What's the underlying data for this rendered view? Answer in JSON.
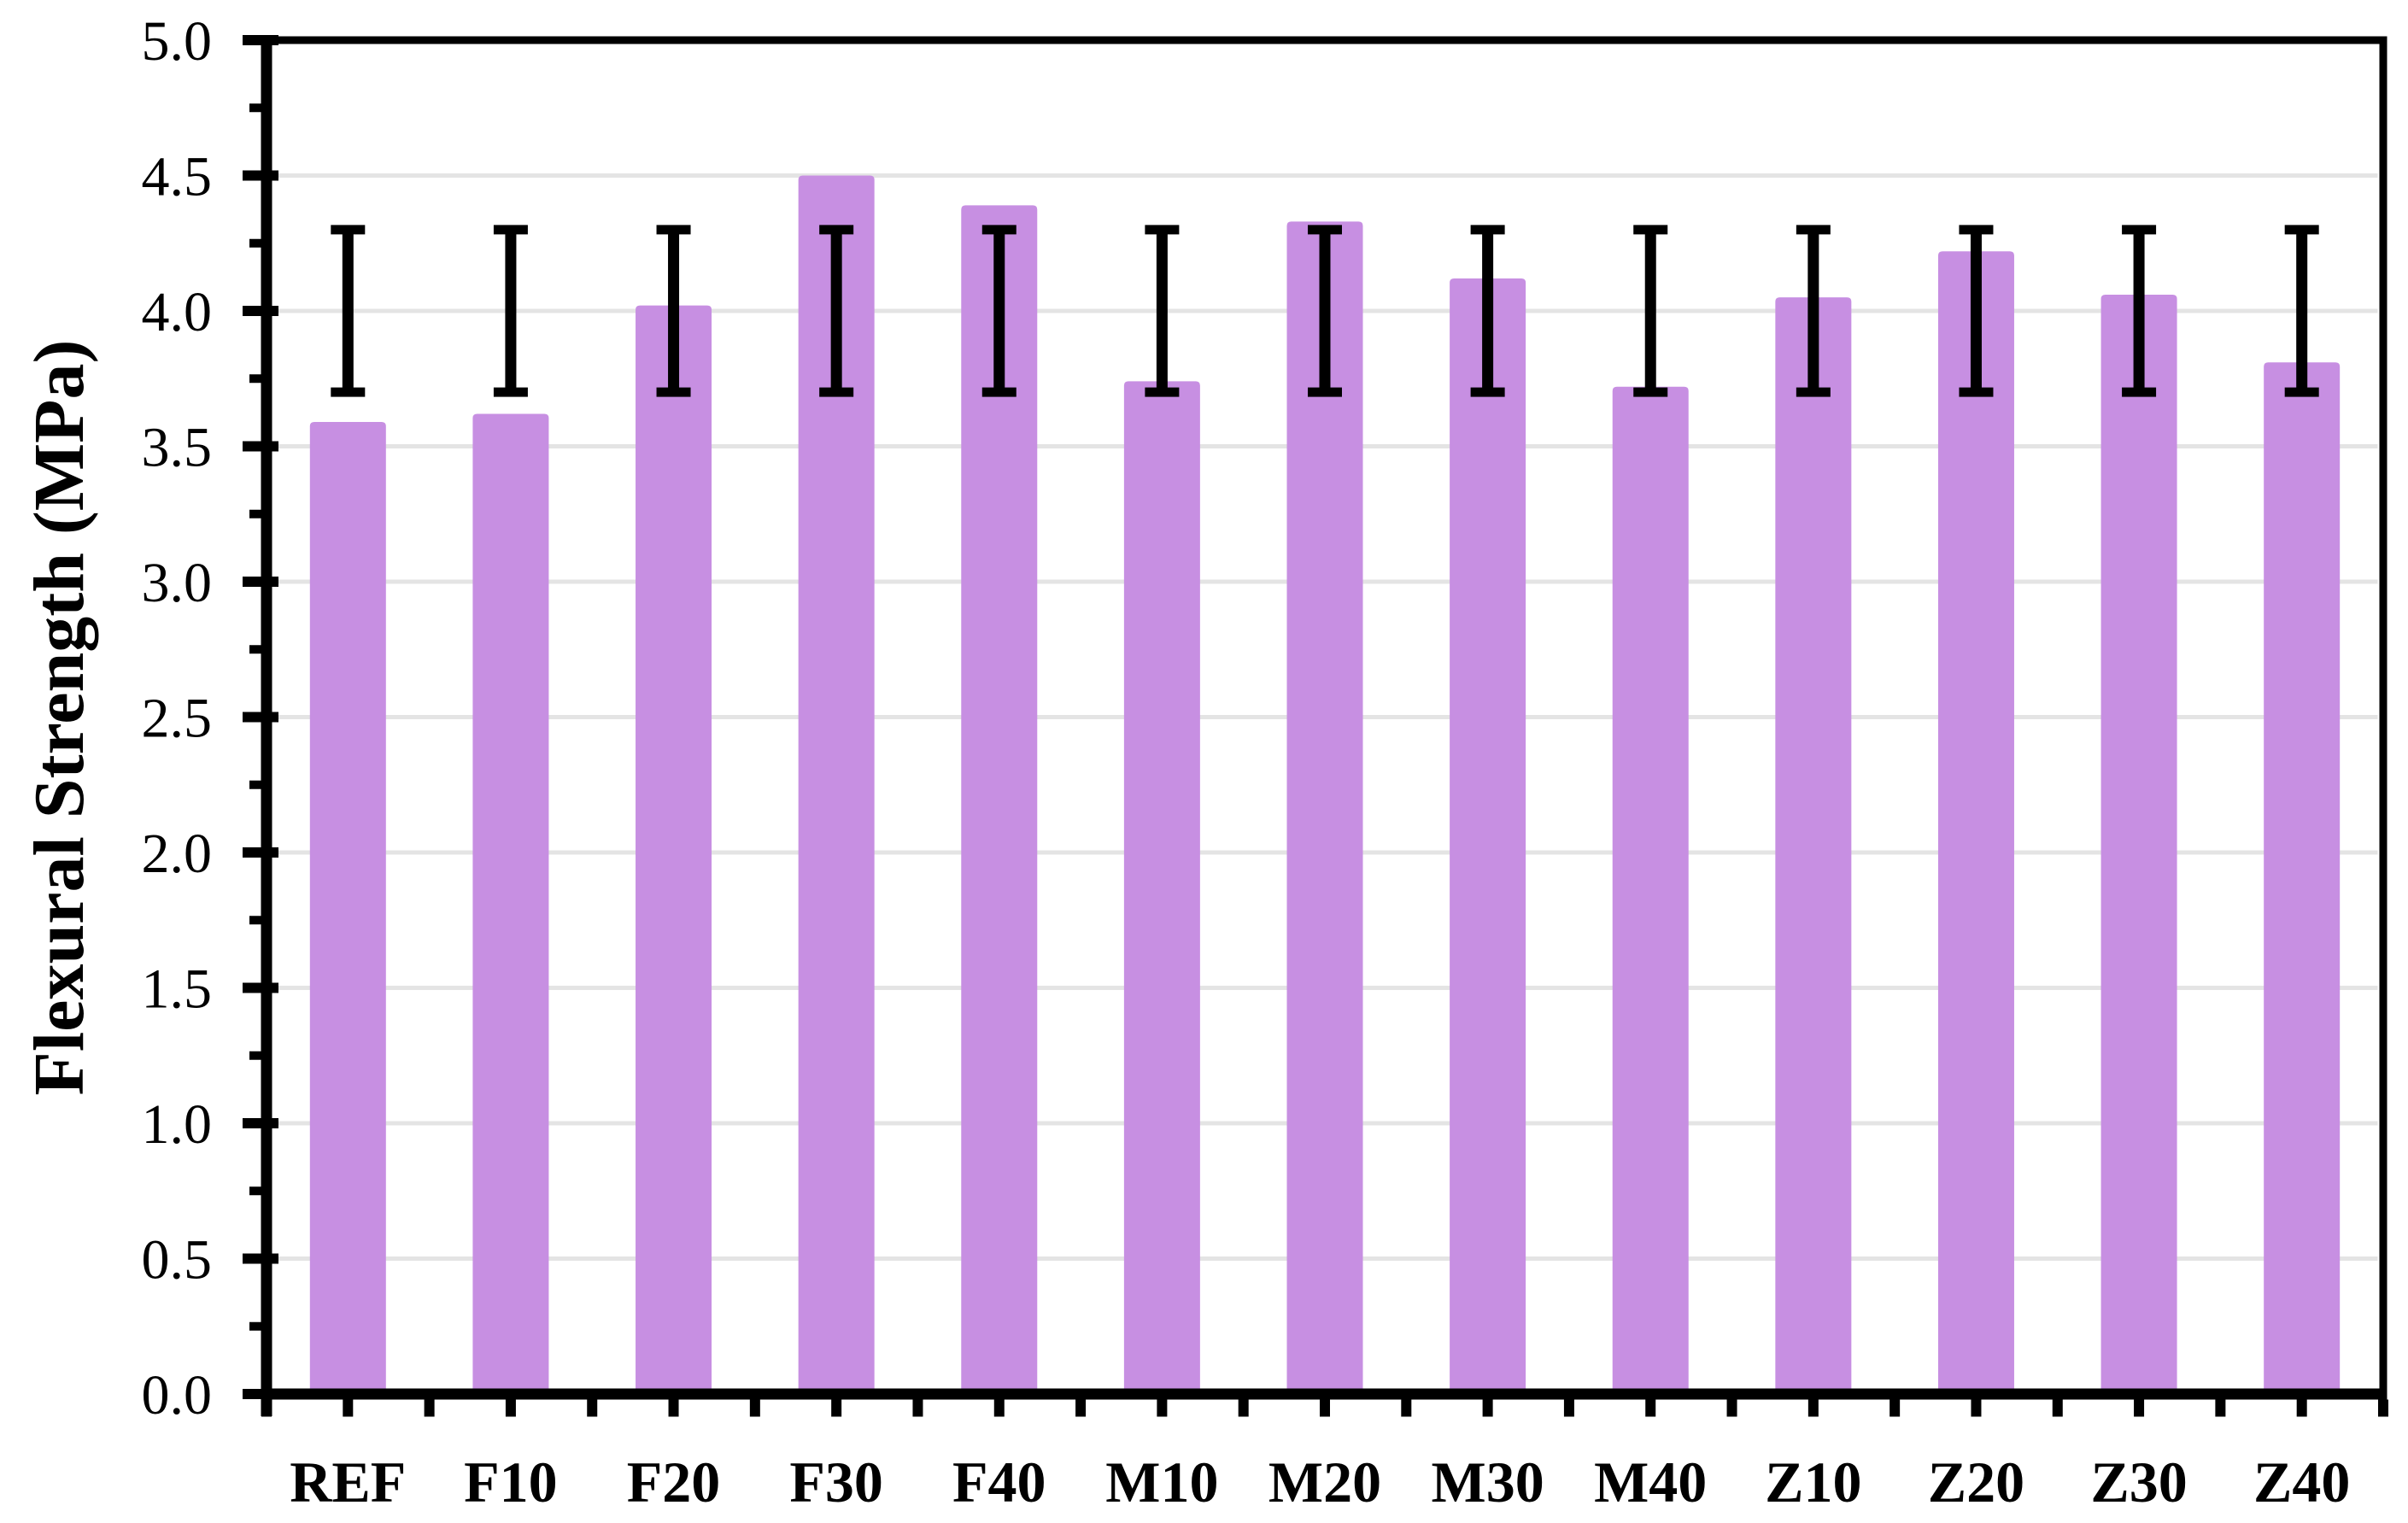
{
  "chart_data": {
    "type": "bar",
    "title": "",
    "xlabel": "",
    "ylabel": "Flexural Strength (MPa)",
    "categories": [
      "REF",
      "F10",
      "F20",
      "F30",
      "F40",
      "M10",
      "M20",
      "M30",
      "M40",
      "Z10",
      "Z20",
      "Z30",
      "Z40"
    ],
    "values": [
      3.59,
      3.62,
      4.02,
      4.5,
      4.39,
      3.74,
      4.33,
      4.12,
      3.72,
      4.05,
      4.22,
      4.06,
      3.81
    ],
    "error_low": [
      3.7,
      3.7,
      3.7,
      3.7,
      3.7,
      3.7,
      3.7,
      3.7,
      3.7,
      3.7,
      3.7,
      3.7,
      3.7
    ],
    "error_high": [
      4.3,
      4.3,
      4.3,
      4.3,
      4.3,
      4.3,
      4.3,
      4.3,
      4.3,
      4.3,
      4.3,
      4.3,
      4.3
    ],
    "ylim": [
      0,
      5
    ],
    "ytick_step": 0.5,
    "yminor_step": 0.25,
    "ytick_labels": [
      "0.0",
      "0.5",
      "1.0",
      "1.5",
      "2.0",
      "2.5",
      "3.0",
      "3.5",
      "4.0",
      "4.5",
      "5.0"
    ],
    "grid": "horizontal-major",
    "legend": "none"
  },
  "style": {
    "bar_fill": "#C78FE2",
    "error_bar_color": "#000000",
    "axis_color": "#000000",
    "gridline_color": "#E4E4E4",
    "background": "#FFFFFF",
    "tick_label_color": "#000000"
  }
}
